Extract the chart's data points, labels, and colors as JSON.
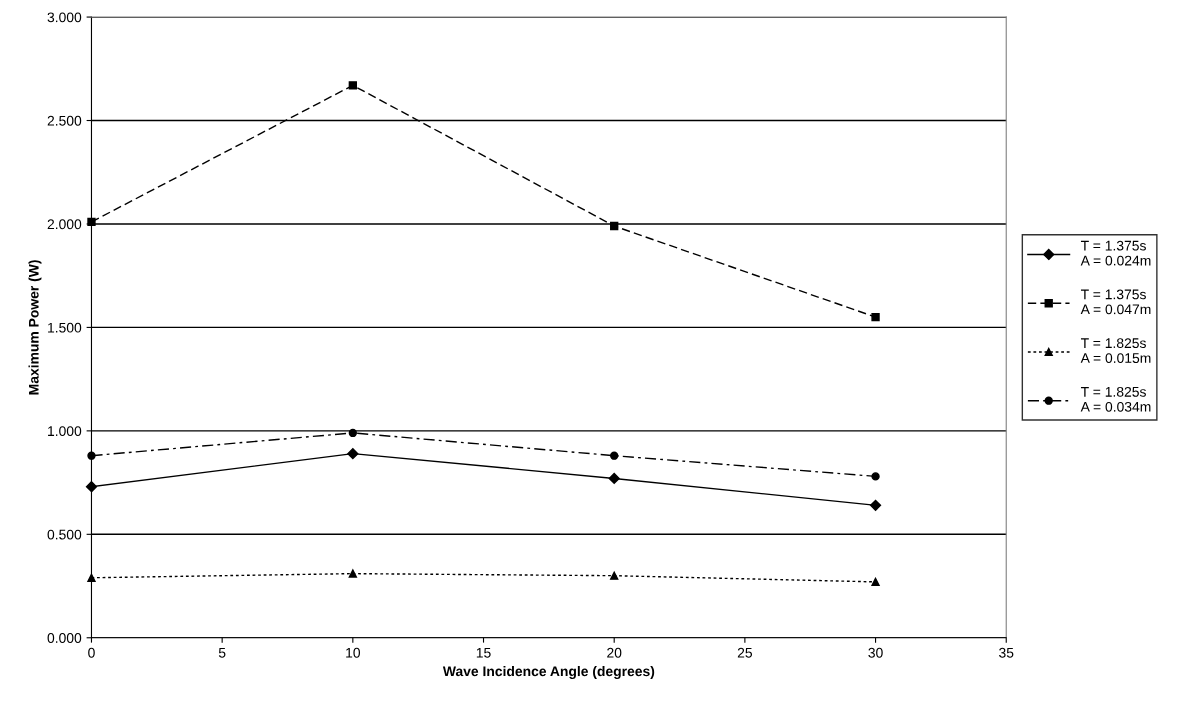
{
  "chart_data": {
    "type": "line",
    "xlabel": "Wave Incidence Angle (degrees)",
    "ylabel": "Maximum Power (W)",
    "x": [
      0,
      10,
      20,
      30
    ],
    "series": [
      {
        "name": "T = 1.375s\nA = 0.024m",
        "color": "#000000",
        "marker": "diamond",
        "line_style": "solid",
        "values": [
          0.73,
          0.89,
          0.77,
          0.64
        ]
      },
      {
        "name": "T = 1.375s\nA = 0.047m",
        "color": "#000000",
        "marker": "square",
        "line_style": "dashed",
        "values": [
          2.01,
          2.67,
          1.99,
          1.55
        ]
      },
      {
        "name": "T = 1.825s\nA = 0.015m",
        "color": "#000000",
        "marker": "triangle",
        "line_style": "dotted",
        "values": [
          0.29,
          0.31,
          0.3,
          0.27
        ]
      },
      {
        "name": "T = 1.825s\nA = 0.034m",
        "color": "#000000",
        "marker": "circle",
        "line_style": "dashdot",
        "values": [
          0.88,
          0.99,
          0.88,
          0.78
        ]
      }
    ],
    "xlim": [
      0,
      35
    ],
    "xticks": [
      0,
      5,
      10,
      15,
      20,
      25,
      30,
      35
    ],
    "ylim": [
      0,
      3
    ],
    "yticks": [
      {
        "value": 0,
        "label": "0.000"
      },
      {
        "value": 0.5,
        "label": "0.500"
      },
      {
        "value": 1,
        "label": "1.000"
      },
      {
        "value": 1.5,
        "label": "1.500"
      },
      {
        "value": 2,
        "label": "2.000"
      },
      {
        "value": 2.5,
        "label": "2.500"
      },
      {
        "value": 3,
        "label": "3.000"
      }
    ],
    "grid": "y",
    "legend": "right"
  }
}
